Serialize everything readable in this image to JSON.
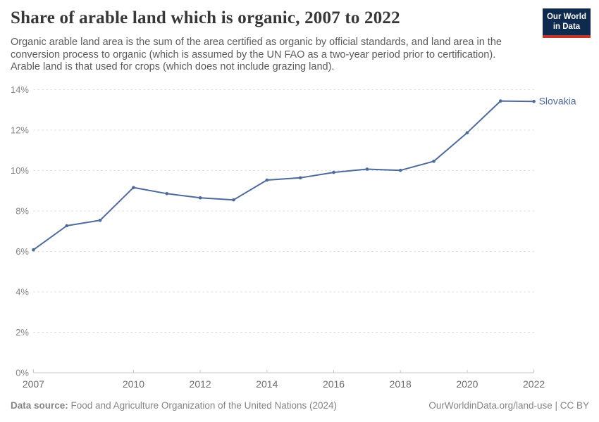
{
  "header": {
    "title": "Share of arable land which is organic, 2007 to 2022",
    "subtitle": "Organic arable land area is the sum of the area certified as organic by official standards, and land area in the conversion process to organic (which is assumed by the UN FAO as a two-year period prior to certification). Arable land is that used for crops (which does not include grazing land).",
    "logo": {
      "line1": "Our World",
      "line2": "in Data"
    }
  },
  "chart_data": {
    "type": "line",
    "title": "Share of arable land which is organic, 2007 to 2022",
    "x": [
      2007,
      2008,
      2009,
      2010,
      2011,
      2012,
      2013,
      2014,
      2015,
      2016,
      2017,
      2018,
      2019,
      2020,
      2021,
      2022
    ],
    "series": [
      {
        "name": "Slovakia",
        "color": "#4c6a9c",
        "values": [
          6.08,
          7.27,
          7.54,
          9.16,
          8.86,
          8.65,
          8.55,
          9.53,
          9.64,
          9.91,
          10.07,
          10.01,
          10.46,
          11.87,
          13.44,
          13.42
        ]
      }
    ],
    "x_ticks": [
      2007,
      2010,
      2012,
      2014,
      2016,
      2018,
      2020,
      2022
    ],
    "y_ticks": [
      0,
      2,
      4,
      6,
      8,
      10,
      12,
      14
    ],
    "y_tick_suffix": "%",
    "xlim": [
      2007,
      2022
    ],
    "ylim": [
      0,
      14
    ],
    "grid": "horizontal-dashed",
    "legend": "line-end-label"
  },
  "footer": {
    "source_label": "Data source:",
    "source_text": " Food and Agriculture Organization of the United Nations (2024)",
    "credit": "OurWorldinData.org/land-use | CC BY"
  },
  "colors": {
    "line": "#4c6a9c",
    "logo_bg": "#0e2a4e",
    "logo_stripe": "#c0362b",
    "grid": "#dcdcdc",
    "axis": "#c8c8c8",
    "x_tick_label": "#6e6e6e",
    "y_tick_label": "#858585",
    "title_text": "#373737",
    "subtitle_text": "#5b5b5b",
    "footer_text": "#858585"
  }
}
